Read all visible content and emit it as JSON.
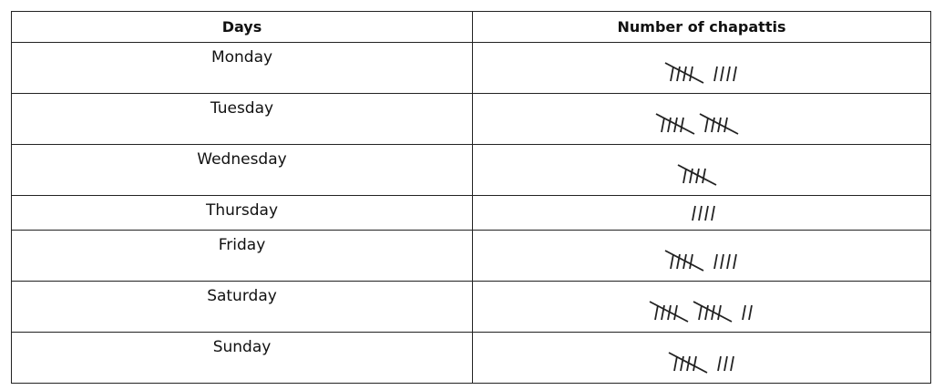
{
  "table": {
    "headers": [
      "Days",
      "Number of chapattis"
    ],
    "rows": [
      {
        "day": "Monday",
        "tally": 9
      },
      {
        "day": "Tuesday",
        "tally": 10
      },
      {
        "day": "Wednesday",
        "tally": 5
      },
      {
        "day": "Thursday",
        "tally": 4
      },
      {
        "day": "Friday",
        "tally": 9
      },
      {
        "day": "Saturday",
        "tally": 12
      },
      {
        "day": "Sunday",
        "tally": 8
      }
    ]
  }
}
